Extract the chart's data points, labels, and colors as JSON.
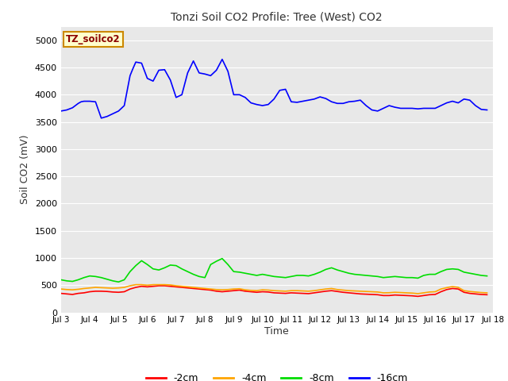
{
  "title": "Tonzi Soil CO2 Profile: Tree (West) CO2",
  "ylabel": "Soil CO2 (mV)",
  "xlabel": "Time",
  "xlim": [
    3,
    18
  ],
  "ylim": [
    0,
    5250
  ],
  "yticks": [
    0,
    500,
    1000,
    1500,
    2000,
    2500,
    3000,
    3500,
    4000,
    4500,
    5000
  ],
  "xtick_labels": [
    "Jul 3",
    "Jul 4",
    "Jul 5",
    "Jul 6",
    "Jul 7",
    "Jul 8",
    "Jul 9",
    "Jul 10",
    "Jul 11",
    "Jul 12",
    "Jul 13",
    "Jul 14",
    "Jul 15",
    "Jul 16",
    "Jul 17",
    "Jul 18"
  ],
  "xtick_positions": [
    3,
    4,
    5,
    6,
    7,
    8,
    9,
    10,
    11,
    12,
    13,
    14,
    15,
    16,
    17,
    18
  ],
  "plot_bg_color": "#e8e8e8",
  "fig_bg_color": "#ffffff",
  "legend_label": "TZ_soilco2",
  "series": {
    "m2cm": {
      "color": "#ff0000",
      "label": "-2cm",
      "x": [
        3.0,
        3.2,
        3.4,
        3.6,
        3.8,
        4.0,
        4.2,
        4.4,
        4.6,
        4.8,
        5.0,
        5.2,
        5.4,
        5.6,
        5.8,
        6.0,
        6.2,
        6.4,
        6.6,
        6.8,
        7.0,
        7.2,
        7.4,
        7.6,
        7.8,
        8.0,
        8.2,
        8.4,
        8.6,
        8.8,
        9.0,
        9.2,
        9.4,
        9.6,
        9.8,
        10.0,
        10.2,
        10.4,
        10.6,
        10.8,
        11.0,
        11.2,
        11.4,
        11.6,
        11.8,
        12.0,
        12.2,
        12.4,
        12.6,
        12.8,
        13.0,
        13.2,
        13.4,
        13.6,
        13.8,
        14.0,
        14.2,
        14.4,
        14.6,
        14.8,
        15.0,
        15.2,
        15.4,
        15.6,
        15.8,
        16.0,
        16.2,
        16.4,
        16.6,
        16.8,
        17.0,
        17.2,
        17.4,
        17.6,
        17.8
      ],
      "y": [
        350,
        340,
        330,
        350,
        360,
        380,
        390,
        390,
        385,
        375,
        370,
        380,
        430,
        460,
        480,
        470,
        480,
        490,
        490,
        480,
        470,
        460,
        450,
        440,
        430,
        420,
        410,
        390,
        380,
        390,
        400,
        410,
        390,
        380,
        370,
        380,
        375,
        360,
        355,
        350,
        360,
        355,
        350,
        345,
        360,
        375,
        390,
        400,
        385,
        370,
        360,
        350,
        340,
        335,
        330,
        325,
        310,
        310,
        320,
        315,
        310,
        305,
        295,
        310,
        325,
        330,
        380,
        420,
        440,
        430,
        370,
        350,
        340,
        330,
        325
      ]
    },
    "m4cm": {
      "color": "#ffa500",
      "label": "-4cm",
      "x": [
        3.0,
        3.2,
        3.4,
        3.6,
        3.8,
        4.0,
        4.2,
        4.4,
        4.6,
        4.8,
        5.0,
        5.2,
        5.4,
        5.6,
        5.8,
        6.0,
        6.2,
        6.4,
        6.6,
        6.8,
        7.0,
        7.2,
        7.4,
        7.6,
        7.8,
        8.0,
        8.2,
        8.4,
        8.6,
        8.8,
        9.0,
        9.2,
        9.4,
        9.6,
        9.8,
        10.0,
        10.2,
        10.4,
        10.6,
        10.8,
        11.0,
        11.2,
        11.4,
        11.6,
        11.8,
        12.0,
        12.2,
        12.4,
        12.6,
        12.8,
        13.0,
        13.2,
        13.4,
        13.6,
        13.8,
        14.0,
        14.2,
        14.4,
        14.6,
        14.8,
        15.0,
        15.2,
        15.4,
        15.6,
        15.8,
        16.0,
        16.2,
        16.4,
        16.6,
        16.8,
        17.0,
        17.2,
        17.4,
        17.6,
        17.8
      ],
      "y": [
        430,
        420,
        415,
        425,
        440,
        450,
        460,
        455,
        450,
        445,
        450,
        460,
        490,
        510,
        510,
        500,
        510,
        510,
        510,
        505,
        490,
        480,
        470,
        460,
        450,
        440,
        430,
        420,
        415,
        420,
        430,
        435,
        415,
        405,
        400,
        415,
        410,
        400,
        395,
        390,
        400,
        400,
        395,
        390,
        400,
        415,
        430,
        440,
        420,
        410,
        400,
        395,
        390,
        385,
        380,
        375,
        360,
        362,
        370,
        365,
        360,
        355,
        345,
        360,
        375,
        380,
        430,
        455,
        475,
        460,
        400,
        385,
        375,
        365,
        360
      ]
    },
    "m8cm": {
      "color": "#00dd00",
      "label": "-8cm",
      "x": [
        3.0,
        3.2,
        3.4,
        3.6,
        3.8,
        4.0,
        4.2,
        4.4,
        4.6,
        4.8,
        5.0,
        5.2,
        5.4,
        5.6,
        5.8,
        6.0,
        6.2,
        6.4,
        6.6,
        6.8,
        7.0,
        7.2,
        7.4,
        7.6,
        7.8,
        8.0,
        8.2,
        8.4,
        8.6,
        8.8,
        9.0,
        9.2,
        9.4,
        9.6,
        9.8,
        10.0,
        10.2,
        10.4,
        10.6,
        10.8,
        11.0,
        11.2,
        11.4,
        11.6,
        11.8,
        12.0,
        12.2,
        12.4,
        12.6,
        12.8,
        13.0,
        13.2,
        13.4,
        13.6,
        13.8,
        14.0,
        14.2,
        14.4,
        14.6,
        14.8,
        15.0,
        15.2,
        15.4,
        15.6,
        15.8,
        16.0,
        16.2,
        16.4,
        16.6,
        16.8,
        17.0,
        17.2,
        17.4,
        17.6,
        17.8
      ],
      "y": [
        600,
        580,
        570,
        600,
        640,
        670,
        660,
        640,
        610,
        580,
        560,
        600,
        750,
        860,
        950,
        880,
        800,
        780,
        820,
        870,
        860,
        800,
        750,
        700,
        660,
        640,
        880,
        940,
        990,
        880,
        750,
        740,
        720,
        700,
        680,
        700,
        680,
        660,
        650,
        640,
        660,
        680,
        680,
        670,
        700,
        740,
        790,
        820,
        780,
        750,
        720,
        700,
        690,
        680,
        670,
        660,
        640,
        650,
        660,
        650,
        640,
        640,
        630,
        680,
        700,
        700,
        750,
        790,
        800,
        790,
        740,
        720,
        700,
        680,
        670
      ]
    },
    "m16cm": {
      "color": "#0000ff",
      "label": "-16cm",
      "x": [
        3.0,
        3.2,
        3.4,
        3.5,
        3.6,
        3.7,
        3.8,
        4.0,
        4.2,
        4.4,
        4.6,
        4.8,
        5.0,
        5.2,
        5.4,
        5.5,
        5.6,
        5.8,
        6.0,
        6.2,
        6.4,
        6.6,
        6.8,
        7.0,
        7.2,
        7.4,
        7.6,
        7.8,
        8.0,
        8.2,
        8.4,
        8.6,
        8.8,
        9.0,
        9.2,
        9.4,
        9.6,
        9.8,
        10.0,
        10.2,
        10.4,
        10.6,
        10.8,
        11.0,
        11.2,
        11.4,
        11.6,
        11.8,
        12.0,
        12.2,
        12.4,
        12.6,
        12.8,
        13.0,
        13.2,
        13.4,
        13.6,
        13.8,
        14.0,
        14.2,
        14.4,
        14.6,
        14.8,
        15.0,
        15.2,
        15.4,
        15.6,
        15.8,
        16.0,
        16.2,
        16.4,
        16.6,
        16.8,
        17.0,
        17.2,
        17.4,
        17.6,
        17.8
      ],
      "y": [
        3700,
        3720,
        3760,
        3800,
        3840,
        3870,
        3880,
        3880,
        3870,
        3570,
        3600,
        3650,
        3700,
        3800,
        4350,
        4480,
        4600,
        4580,
        4300,
        4250,
        4450,
        4460,
        4270,
        3950,
        4000,
        4400,
        4620,
        4400,
        4380,
        4350,
        4450,
        4650,
        4430,
        4000,
        4000,
        3950,
        3850,
        3820,
        3800,
        3820,
        3920,
        4080,
        4100,
        3870,
        3860,
        3880,
        3900,
        3920,
        3960,
        3930,
        3870,
        3840,
        3840,
        3870,
        3880,
        3900,
        3800,
        3720,
        3700,
        3750,
        3800,
        3770,
        3750,
        3750,
        3750,
        3740,
        3750,
        3750,
        3750,
        3800,
        3850,
        3880,
        3850,
        3920,
        3900,
        3800,
        3730,
        3720
      ]
    }
  }
}
